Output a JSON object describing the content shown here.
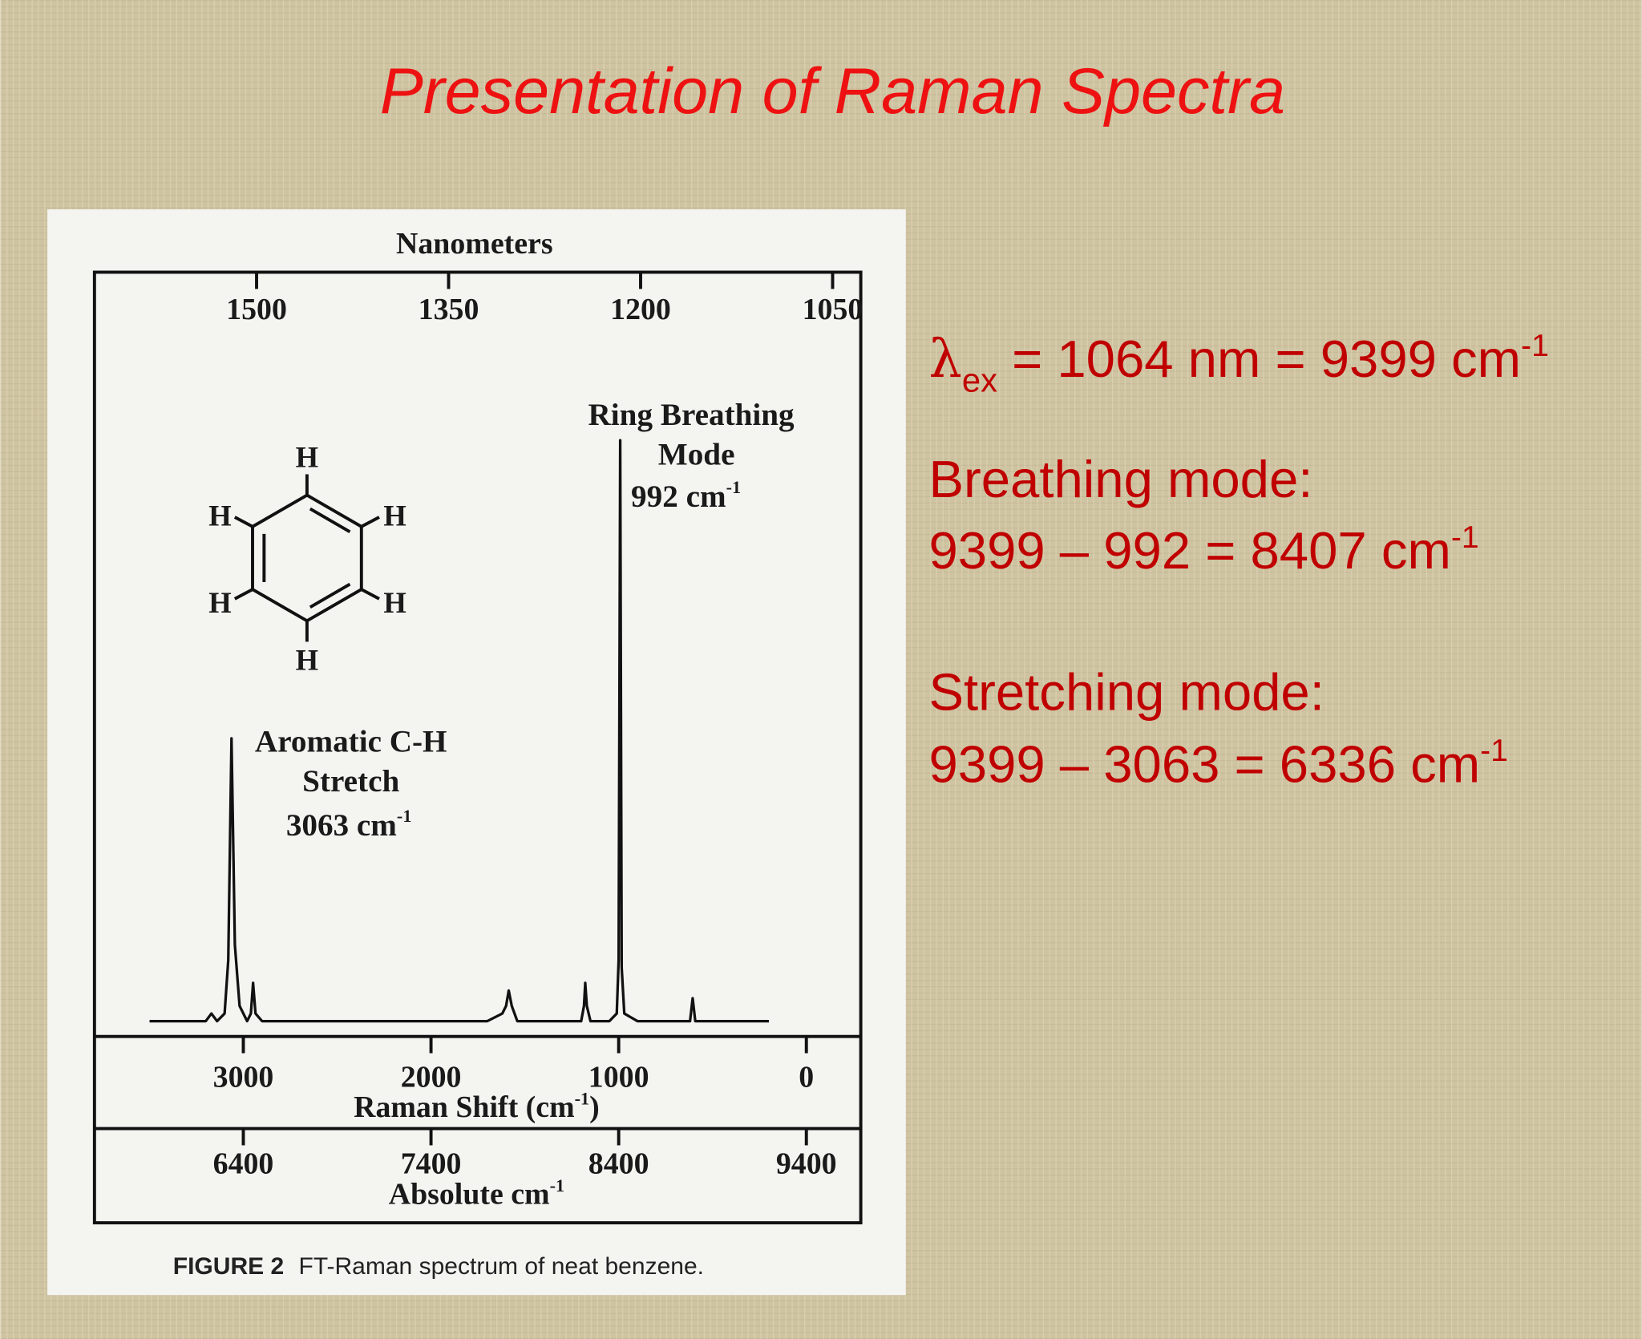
{
  "slide": {
    "title": "Presentation of Raman Spectra",
    "lines": [
      {
        "symbol": "λ",
        "sub": "ex",
        "text": " = 1064 nm = 9399 cm",
        "sup": "-1"
      },
      {
        "text": "Breathing mode:"
      },
      {
        "text": "9399 – 992 = 8407 cm",
        "sup": "-1"
      },
      {
        "text": "Stretching mode:"
      },
      {
        "text": "9399 – 3063 = 6336 cm",
        "sup": "-1"
      }
    ],
    "figure": {
      "caption_label": "FIGURE 2",
      "caption": "FT-Raman spectrum of neat benzene.",
      "benzene_atoms": [
        "H",
        "H",
        "H",
        "H",
        "H",
        "H"
      ]
    }
  },
  "chart_data": {
    "type": "line",
    "x2label": "Nanometers",
    "xlabel": {
      "text": "Raman Shift (cm",
      "sup": "-1",
      "tail": ")"
    },
    "x3label": {
      "text": "Absolute cm",
      "sup": "-1"
    },
    "annotations": [
      {
        "lines": [
          "Ring Breathing",
          "Mode",
          "992 cm"
        ],
        "sup": "-1"
      },
      {
        "lines": [
          "Aromatic C-H",
          "Stretch",
          "3063 cm"
        ],
        "sup": "-1"
      }
    ],
    "x": [
      3500,
      3200,
      3170,
      3140,
      3100,
      3080,
      3063,
      3045,
      3020,
      2980,
      2960,
      2948,
      2935,
      2900,
      2600,
      2200,
      1700,
      1620,
      1600,
      1586,
      1570,
      1540,
      1300,
      1200,
      1185,
      1178,
      1170,
      1150,
      1050,
      1010,
      1000,
      992,
      984,
      970,
      900,
      700,
      620,
      606,
      592,
      500,
      200
    ],
    "values": [
      2,
      2,
      3,
      2,
      3,
      10,
      39,
      12,
      4,
      2,
      3,
      7,
      3,
      2,
      2,
      2,
      2,
      3,
      4,
      6,
      4,
      2,
      2,
      2,
      4,
      7,
      4,
      2,
      2,
      3,
      10,
      78,
      9,
      3,
      2,
      2,
      2,
      5,
      2,
      2,
      2
    ],
    "color": "#111111",
    "xlim": [
      3782,
      -290
    ],
    "xticks": [
      3000,
      2000,
      1000,
      0
    ],
    "x2lim": [
      1625,
      1028
    ],
    "x2ticks": [
      1500,
      1350,
      1200,
      1050
    ],
    "x3lim": [
      5618,
      9690
    ],
    "x3ticks": [
      6400,
      7400,
      8400,
      9400
    ],
    "ylim": [
      0,
      100
    ]
  }
}
